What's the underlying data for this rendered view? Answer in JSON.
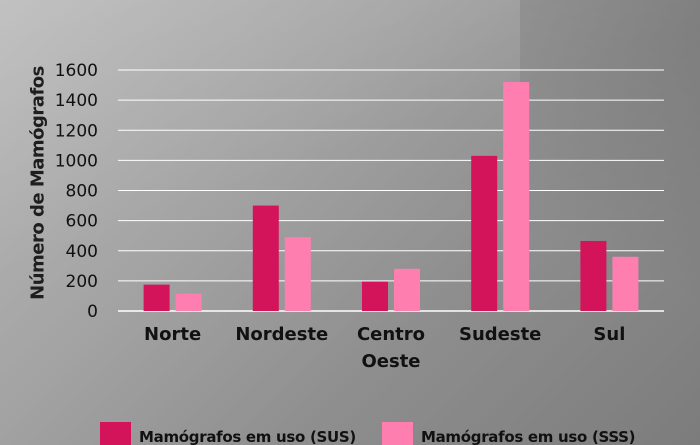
{
  "chart_data": {
    "type": "bar",
    "ylabel": "Número de Mamógrafos",
    "ylim": [
      0,
      1600
    ],
    "yticks": [
      0,
      200,
      400,
      600,
      800,
      1000,
      1200,
      1400,
      1600
    ],
    "grid": true,
    "legend_position": "bottom",
    "categories": [
      [
        "Norte"
      ],
      [
        "Nordeste"
      ],
      [
        "Centro",
        "Oeste"
      ],
      [
        "Sudeste"
      ],
      [
        "Sul"
      ]
    ],
    "series": [
      {
        "name": "Mamógrafos em uso (SUS)",
        "color": "#d4145a",
        "values": [
          175,
          700,
          195,
          1030,
          465
        ]
      },
      {
        "name": "Mamógrafos em uso (SSS)",
        "color": "#ff7eb0",
        "values": [
          115,
          490,
          280,
          1520,
          360
        ]
      }
    ]
  }
}
